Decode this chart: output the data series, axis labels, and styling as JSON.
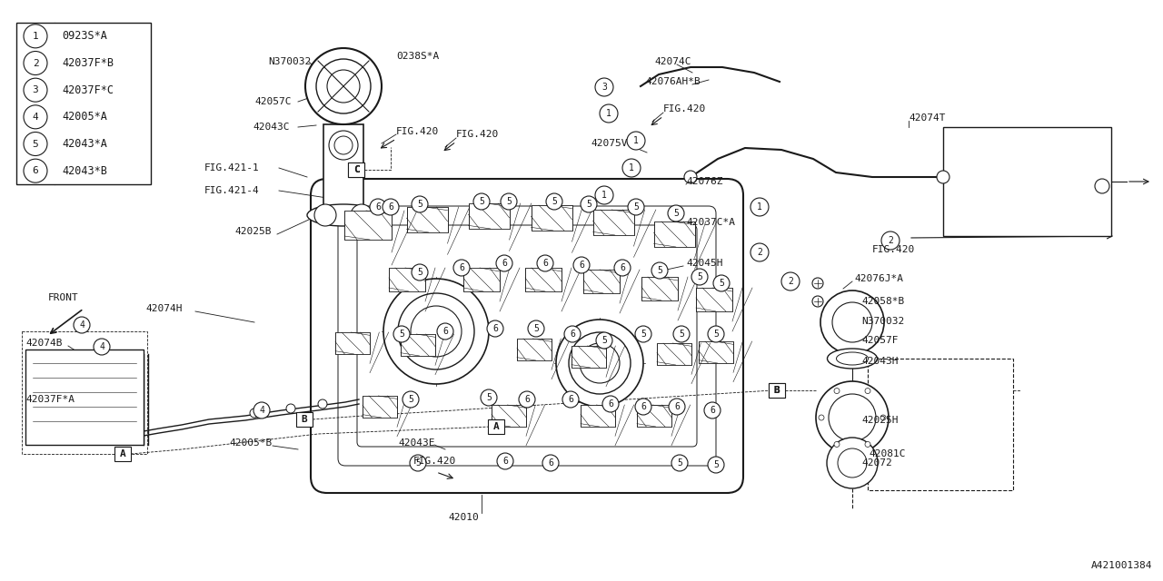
{
  "bg_color": "#ffffff",
  "line_color": "#1a1a1a",
  "watermark": "A421001384",
  "fig_w": 12.8,
  "fig_h": 6.4,
  "legend": [
    {
      "num": "1",
      "label": "0923S*A"
    },
    {
      "num": "2",
      "label": "42037F*B"
    },
    {
      "num": "3",
      "label": "42037F*C"
    },
    {
      "num": "4",
      "label": "42005*A"
    },
    {
      "num": "5",
      "label": "42043*A"
    },
    {
      "num": "6",
      "label": "42043*B"
    }
  ]
}
